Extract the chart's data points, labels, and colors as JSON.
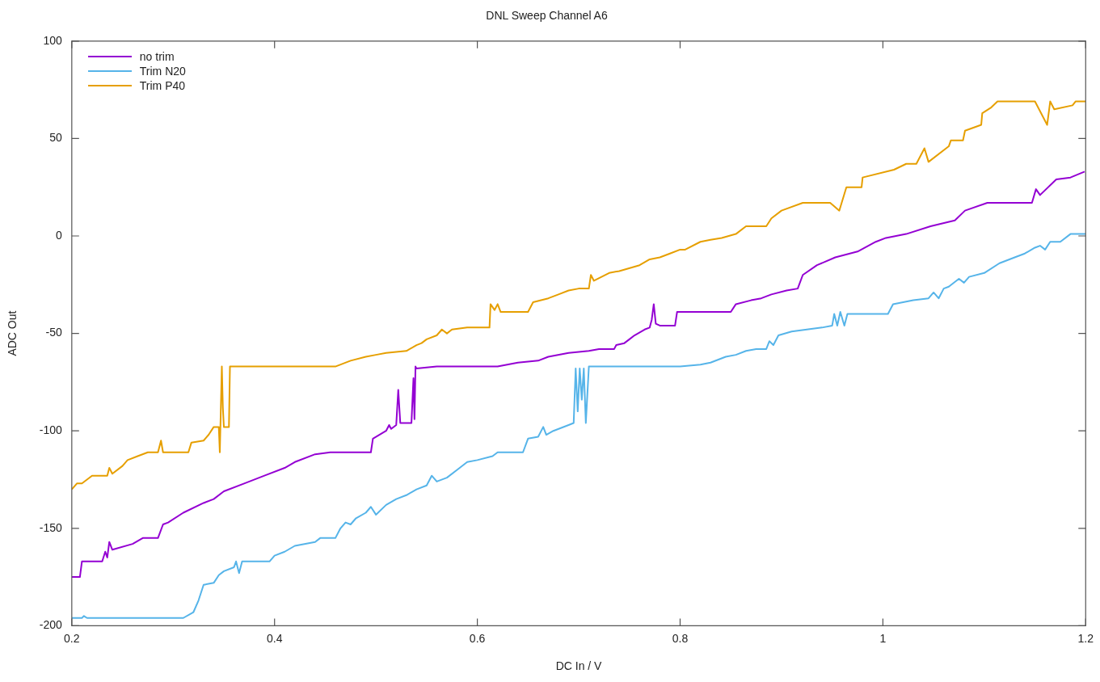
{
  "chart_data": {
    "type": "line",
    "title": "DNL Sweep Channel A6",
    "xlabel": "DC In / V",
    "ylabel": "ADC Out",
    "xlim": [
      0.2,
      1.2
    ],
    "xticks": [
      0.2,
      0.4,
      0.6,
      0.8,
      1,
      1.2
    ],
    "ylim": [
      -200,
      100
    ],
    "yticks": [
      -200,
      -150,
      -100,
      -50,
      0,
      50,
      100
    ],
    "grid": false,
    "legend": "top left",
    "marker": "none",
    "line_style": "solid",
    "series": [
      {
        "name": "no trim",
        "color": "#9400d3",
        "x": [
          0.2,
          0.208,
          0.21,
          0.23,
          0.233,
          0.235,
          0.237,
          0.24,
          0.26,
          0.27,
          0.285,
          0.29,
          0.295,
          0.31,
          0.33,
          0.34,
          0.35,
          0.37,
          0.39,
          0.41,
          0.42,
          0.44,
          0.455,
          0.495,
          0.497,
          0.51,
          0.513,
          0.515,
          0.52,
          0.522,
          0.524,
          0.535,
          0.537,
          0.538,
          0.539,
          0.54,
          0.56,
          0.62,
          0.64,
          0.66,
          0.67,
          0.69,
          0.71,
          0.72,
          0.735,
          0.737,
          0.745,
          0.75,
          0.755,
          0.765,
          0.77,
          0.772,
          0.774,
          0.776,
          0.78,
          0.795,
          0.797,
          0.85,
          0.855,
          0.87,
          0.88,
          0.89,
          0.905,
          0.916,
          0.921,
          0.935,
          0.953,
          0.975,
          0.993,
          1.003,
          1.023,
          1.047,
          1.071,
          1.081,
          1.103,
          1.147,
          1.151,
          1.155,
          1.171,
          1.185,
          1.199
        ],
        "values": [
          -175,
          -175,
          -167,
          -167,
          -162,
          -165,
          -157,
          -161,
          -158,
          -155,
          -155,
          -148,
          -147,
          -142,
          -137,
          -135,
          -131,
          -127,
          -123,
          -119,
          -116,
          -112,
          -111,
          -111,
          -104,
          -100,
          -97,
          -99,
          -97,
          -79,
          -96,
          -96,
          -73,
          -94,
          -67,
          -68,
          -67,
          -67,
          -65,
          -64,
          -62,
          -60,
          -59,
          -58,
          -58,
          -56,
          -55,
          -53,
          -51,
          -48,
          -47,
          -43,
          -35,
          -45,
          -46,
          -46,
          -39,
          -39,
          -35,
          -33,
          -32,
          -30,
          -28,
          -27,
          -20,
          -15,
          -11,
          -8,
          -3,
          -1,
          1,
          5,
          8,
          13,
          17,
          17,
          24,
          21,
          29,
          30,
          33
        ]
      },
      {
        "name": "Trim N20",
        "color": "#56b4e9",
        "x": [
          0.2,
          0.21,
          0.212,
          0.215,
          0.31,
          0.32,
          0.325,
          0.33,
          0.34,
          0.345,
          0.35,
          0.36,
          0.362,
          0.365,
          0.368,
          0.395,
          0.4,
          0.41,
          0.42,
          0.44,
          0.445,
          0.46,
          0.465,
          0.47,
          0.475,
          0.48,
          0.49,
          0.495,
          0.5,
          0.51,
          0.52,
          0.53,
          0.54,
          0.55,
          0.555,
          0.56,
          0.57,
          0.58,
          0.59,
          0.6,
          0.615,
          0.62,
          0.645,
          0.65,
          0.66,
          0.665,
          0.668,
          0.675,
          0.69,
          0.695,
          0.697,
          0.699,
          0.701,
          0.703,
          0.705,
          0.707,
          0.71,
          0.73,
          0.8,
          0.82,
          0.83,
          0.845,
          0.855,
          0.865,
          0.875,
          0.885,
          0.888,
          0.892,
          0.897,
          0.91,
          0.925,
          0.94,
          0.95,
          0.952,
          0.955,
          0.958,
          0.962,
          0.965,
          1.005,
          1.01,
          1.02,
          1.03,
          1.045,
          1.05,
          1.055,
          1.06,
          1.065,
          1.075,
          1.08,
          1.085,
          1.1,
          1.115,
          1.13,
          1.14,
          1.15,
          1.155,
          1.16,
          1.165,
          1.175,
          1.185,
          1.2
        ],
        "values": [
          -196,
          -196,
          -195,
          -196,
          -196,
          -193,
          -187,
          -179,
          -178,
          -174,
          -172,
          -170,
          -167,
          -173,
          -167,
          -167,
          -164,
          -162,
          -159,
          -157,
          -155,
          -155,
          -150,
          -147,
          -148,
          -145,
          -142,
          -139,
          -143,
          -138,
          -135,
          -133,
          -130,
          -128,
          -123,
          -126,
          -124,
          -120,
          -116,
          -115,
          -113,
          -111,
          -111,
          -104,
          -103,
          -98,
          -102,
          -100,
          -97,
          -96,
          -68,
          -90,
          -68,
          -84,
          -68,
          -96,
          -67,
          -67,
          -67,
          -66,
          -65,
          -62,
          -61,
          -59,
          -58,
          -58,
          -54,
          -56,
          -51,
          -49,
          -48,
          -47,
          -46,
          -40,
          -46,
          -39,
          -46,
          -40,
          -40,
          -35,
          -34,
          -33,
          -32,
          -29,
          -32,
          -27,
          -26,
          -22,
          -24,
          -21,
          -19,
          -14,
          -11,
          -9,
          -6,
          -5,
          -7,
          -3,
          -3,
          1,
          1
        ]
      },
      {
        "name": "Trim P40",
        "color": "#e69f00",
        "x": [
          0.2,
          0.205,
          0.21,
          0.215,
          0.22,
          0.235,
          0.237,
          0.24,
          0.25,
          0.255,
          0.265,
          0.275,
          0.285,
          0.288,
          0.29,
          0.315,
          0.318,
          0.33,
          0.335,
          0.34,
          0.345,
          0.346,
          0.348,
          0.349,
          0.35,
          0.355,
          0.356,
          0.38,
          0.46,
          0.475,
          0.49,
          0.5,
          0.51,
          0.53,
          0.54,
          0.545,
          0.55,
          0.56,
          0.565,
          0.57,
          0.575,
          0.59,
          0.612,
          0.613,
          0.617,
          0.62,
          0.623,
          0.65,
          0.655,
          0.67,
          0.68,
          0.69,
          0.7,
          0.71,
          0.712,
          0.715,
          0.73,
          0.74,
          0.76,
          0.77,
          0.78,
          0.79,
          0.8,
          0.805,
          0.82,
          0.83,
          0.841,
          0.855,
          0.865,
          0.885,
          0.89,
          0.9,
          0.921,
          0.948,
          0.957,
          0.964,
          0.979,
          0.98,
          1.011,
          1.023,
          1.033,
          1.041,
          1.045,
          1.065,
          1.067,
          1.079,
          1.081,
          1.097,
          1.098,
          1.107,
          1.113,
          1.15,
          1.162,
          1.165,
          1.169,
          1.187,
          1.19,
          1.2
        ],
        "values": [
          -130,
          -127,
          -127,
          -125,
          -123,
          -123,
          -119,
          -122,
          -118,
          -115,
          -113,
          -111,
          -111,
          -105,
          -111,
          -111,
          -106,
          -105,
          -102,
          -98,
          -98,
          -111,
          -67,
          -88,
          -98,
          -98,
          -67,
          -67,
          -67,
          -64,
          -62,
          -61,
          -60,
          -59,
          -56,
          -55,
          -53,
          -51,
          -48,
          -50,
          -48,
          -47,
          -47,
          -35,
          -38,
          -35,
          -39,
          -39,
          -34,
          -32,
          -30,
          -28,
          -27,
          -27,
          -20,
          -23,
          -19,
          -18,
          -15,
          -12,
          -11,
          -9,
          -7,
          -7,
          -3,
          -2,
          -1,
          1,
          5,
          5,
          9,
          13,
          17,
          17,
          13,
          25,
          25,
          30,
          34,
          37,
          37,
          45,
          38,
          46,
          49,
          49,
          54,
          57,
          63,
          66,
          69,
          69,
          57,
          69,
          65,
          67,
          69,
          69
        ]
      }
    ]
  }
}
